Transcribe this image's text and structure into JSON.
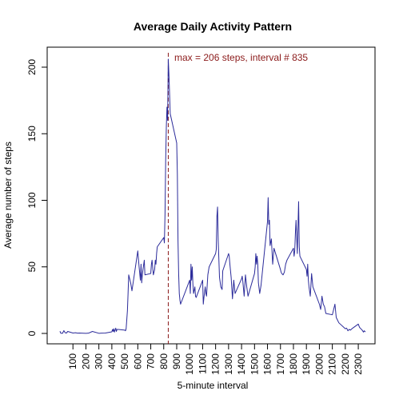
{
  "chart_data": {
    "type": "line",
    "title": "Average Daily Activity Pattern",
    "xlabel": "5-minute interval",
    "ylabel": "Average number of steps",
    "xlim": [
      0,
      2355
    ],
    "ylim": [
      0,
      206
    ],
    "x_ticks": [
      100,
      200,
      300,
      400,
      500,
      600,
      700,
      800,
      900,
      1000,
      1100,
      1200,
      1300,
      1400,
      1500,
      1600,
      1700,
      1800,
      1900,
      2000,
      2100,
      2200,
      2300
    ],
    "x_tick_labels": [
      "100",
      "200",
      "300",
      "400",
      "500",
      "600",
      "700",
      "800",
      "900",
      "1000",
      "1100",
      "1200",
      "1300",
      "1400",
      "1500",
      "1600",
      "1700",
      "1800",
      "1900",
      "2000",
      "2100",
      "2200",
      "2300"
    ],
    "y_ticks": [
      0,
      50,
      100,
      150,
      200
    ],
    "y_tick_labels": [
      "0",
      "50",
      "100",
      "150",
      "200"
    ],
    "grid": false,
    "line_color": "#2b2b9a",
    "max_line_color": "#8b1a1a",
    "annotation": {
      "text": "max =  206 steps, interval # 835",
      "x": 835,
      "y": 206
    },
    "series": [
      {
        "x": [
          0,
          5,
          10,
          15,
          20,
          30,
          40,
          50,
          60,
          100,
          120,
          135,
          150,
          200,
          220,
          250,
          300,
          320,
          350,
          400,
          405,
          410,
          415,
          420,
          425,
          430,
          435,
          440,
          450,
          500,
          505,
          510,
          520,
          525,
          530,
          535,
          540,
          545,
          550,
          555,
          600,
          610,
          620,
          625,
          630,
          635,
          640,
          650,
          655,
          700,
          705,
          710,
          720,
          730,
          735,
          740,
          745,
          750,
          800,
          805,
          810,
          815,
          820,
          825,
          830,
          835,
          840,
          845,
          850,
          900,
          905,
          910,
          915,
          920,
          925,
          930,
          1000,
          1005,
          1010,
          1015,
          1020,
          1025,
          1030,
          1040,
          1045,
          1050,
          1100,
          1105,
          1110,
          1120,
          1125,
          1130,
          1140,
          1150,
          1200,
          1205,
          1210,
          1215,
          1220,
          1230,
          1240,
          1250,
          1255,
          1300,
          1305,
          1310,
          1320,
          1330,
          1340,
          1350,
          1400,
          1405,
          1410,
          1420,
          1430,
          1440,
          1450,
          1500,
          1505,
          1510,
          1515,
          1520,
          1525,
          1530,
          1540,
          1550,
          1600,
          1605,
          1610,
          1615,
          1620,
          1630,
          1640,
          1650,
          1700,
          1705,
          1710,
          1720,
          1730,
          1740,
          1750,
          1800,
          1805,
          1810,
          1815,
          1820,
          1830,
          1840,
          1845,
          1850,
          1900,
          1905,
          1910,
          1915,
          1920,
          1930,
          1940,
          1950,
          2000,
          2005,
          2010,
          2020,
          2030,
          2040,
          2050,
          2100,
          2105,
          2110,
          2120,
          2130,
          2140,
          2150,
          2200,
          2210,
          2220,
          2230,
          2240,
          2250,
          2300,
          2310,
          2320,
          2330,
          2340,
          2345,
          2355
        ],
        "y": [
          1.7,
          0.3,
          0.1,
          0.2,
          0.1,
          2.1,
          0.5,
          0.3,
          1.5,
          0.3,
          0.5,
          0.2,
          0.3,
          0.1,
          0.2,
          1.5,
          0.1,
          0.2,
          0.3,
          1.2,
          3,
          1.5,
          3.5,
          1,
          2.5,
          4,
          1.5,
          3,
          3,
          2.5,
          2,
          3.5,
          17,
          30,
          44,
          42,
          40,
          38,
          35,
          32,
          62,
          50,
          40,
          52,
          38,
          44,
          48,
          55,
          44,
          45,
          52,
          55,
          44,
          48,
          55,
          52,
          60,
          65,
          72,
          68,
          90,
          130,
          155,
          170,
          160,
          206,
          195,
          180,
          165,
          143,
          120,
          70,
          45,
          30,
          25,
          22,
          40,
          30,
          52,
          40,
          50,
          37,
          30,
          35,
          28,
          27,
          40,
          22,
          27,
          35,
          30,
          28,
          44,
          50,
          60,
          63,
          88,
          95,
          70,
          42,
          35,
          33,
          47,
          60,
          58,
          52,
          42,
          26,
          40,
          30,
          41,
          43,
          39,
          28,
          44,
          35,
          28,
          45,
          50,
          60,
          52,
          58,
          52,
          38,
          30,
          36,
          84,
          102,
          82,
          85,
          66,
          71,
          52,
          64,
          48,
          46,
          45,
          44,
          46,
          52,
          55,
          64,
          58,
          62,
          75,
          85,
          60,
          99,
          65,
          58,
          48,
          43,
          52,
          40,
          35,
          28,
          45,
          35,
          22,
          20,
          18,
          28,
          22,
          20,
          15,
          14,
          16,
          18,
          22,
          12,
          10,
          8,
          3.5,
          4,
          2,
          3,
          2.5,
          3.5,
          7,
          4.5,
          3.5,
          2.5,
          1,
          2,
          1.1
        ]
      }
    ]
  }
}
